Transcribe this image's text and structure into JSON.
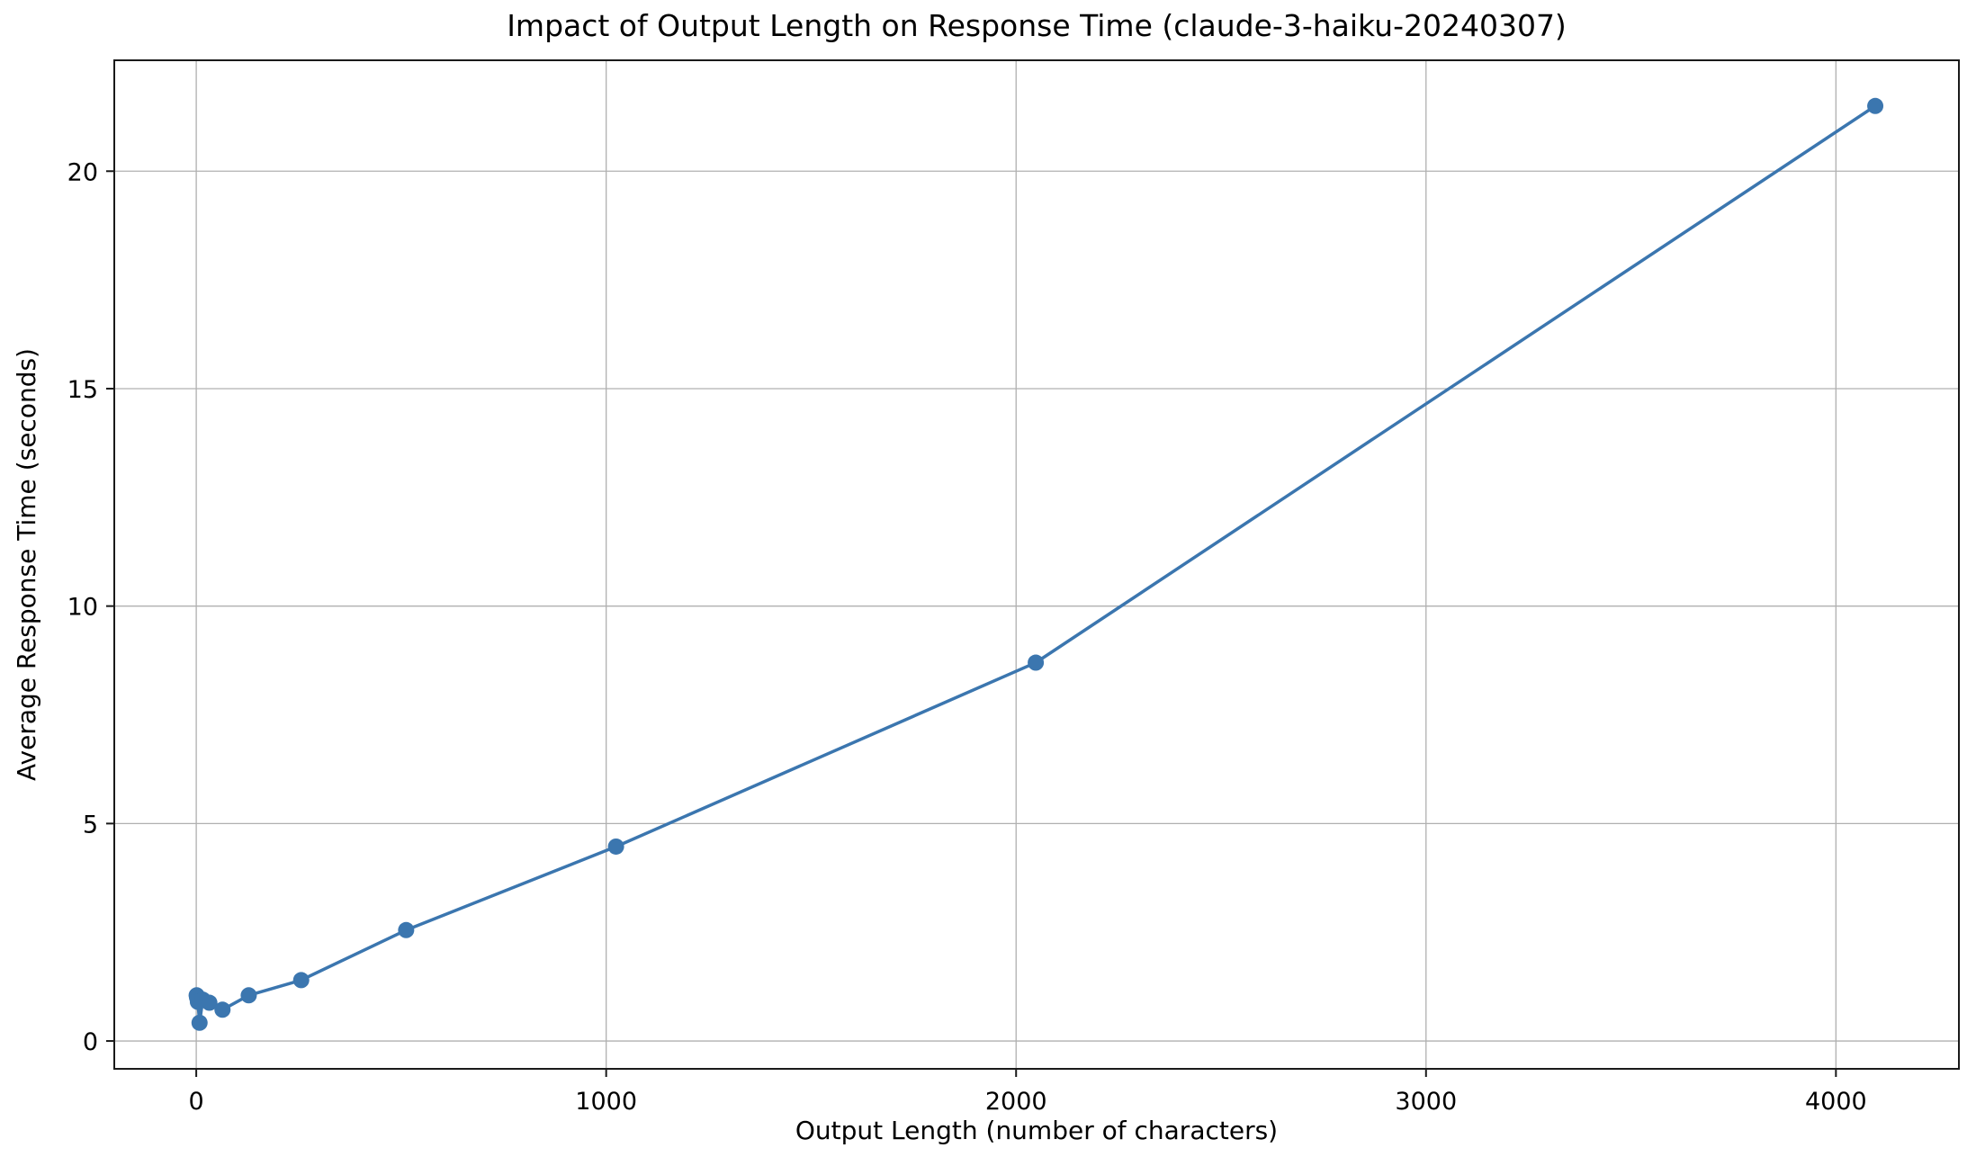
{
  "chart_data": {
    "type": "line",
    "title": "Impact of Output Length on Response Time (claude-3-haiku-20240307)",
    "xlabel": "Output Length (number of characters)",
    "ylabel": "Average Response Time (seconds)",
    "x": [
      1,
      2,
      4,
      8,
      16,
      32,
      64,
      128,
      256,
      512,
      1024,
      2048,
      4096
    ],
    "y": [
      1.05,
      1.0,
      0.9,
      0.42,
      0.95,
      0.88,
      0.72,
      1.05,
      1.4,
      2.55,
      4.47,
      8.7,
      21.5
    ],
    "xticks": [
      0,
      1000,
      2000,
      3000,
      4000
    ],
    "yticks": [
      0,
      5,
      10,
      15,
      20
    ],
    "xlim": [
      -200,
      4300
    ],
    "ylim": [
      -0.64,
      22.55
    ],
    "grid": true,
    "legend": false,
    "line_color": "#3b76af",
    "marker": "circle",
    "grid_color": "#b0b0b0",
    "spine_color": "#1a1a1a",
    "background_color": "#ffffff"
  }
}
